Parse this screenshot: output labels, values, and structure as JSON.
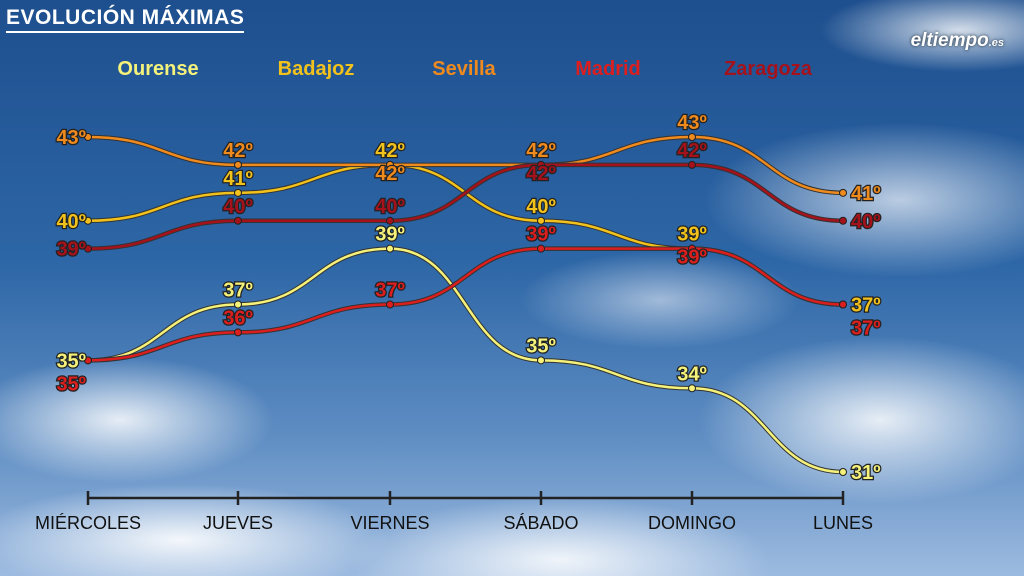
{
  "header": {
    "title": "EVOLUCIÓN MÁXIMAS",
    "logo": "eltiempo",
    "logo_suffix": ".es"
  },
  "chart_data": {
    "type": "line",
    "title": "EVOLUCIÓN MÁXIMAS",
    "categories": [
      "MIÉRCOLES",
      "JUEVES",
      "VIERNES",
      "SÁBADO",
      "DOMINGO",
      "LUNES"
    ],
    "unit": "º",
    "ylim": [
      31,
      43
    ],
    "grid": false,
    "legend_position": "top",
    "series": [
      {
        "name": "Ourense",
        "color": "#f4f27a",
        "values": [
          35,
          37,
          39,
          35,
          34,
          31
        ]
      },
      {
        "name": "Badajoz",
        "color": "#f2c21c",
        "values": [
          40,
          41,
          42,
          40,
          39,
          37
        ]
      },
      {
        "name": "Sevilla",
        "color": "#ee8a1e",
        "values": [
          43,
          42,
          42,
          42,
          43,
          41
        ]
      },
      {
        "name": "Madrid",
        "color": "#dc1e1e",
        "values": [
          35,
          36,
          37,
          39,
          39,
          37
        ]
      },
      {
        "name": "Zaragoza",
        "color": "#a5121c",
        "values": [
          39,
          40,
          40,
          42,
          42,
          40
        ]
      }
    ]
  }
}
